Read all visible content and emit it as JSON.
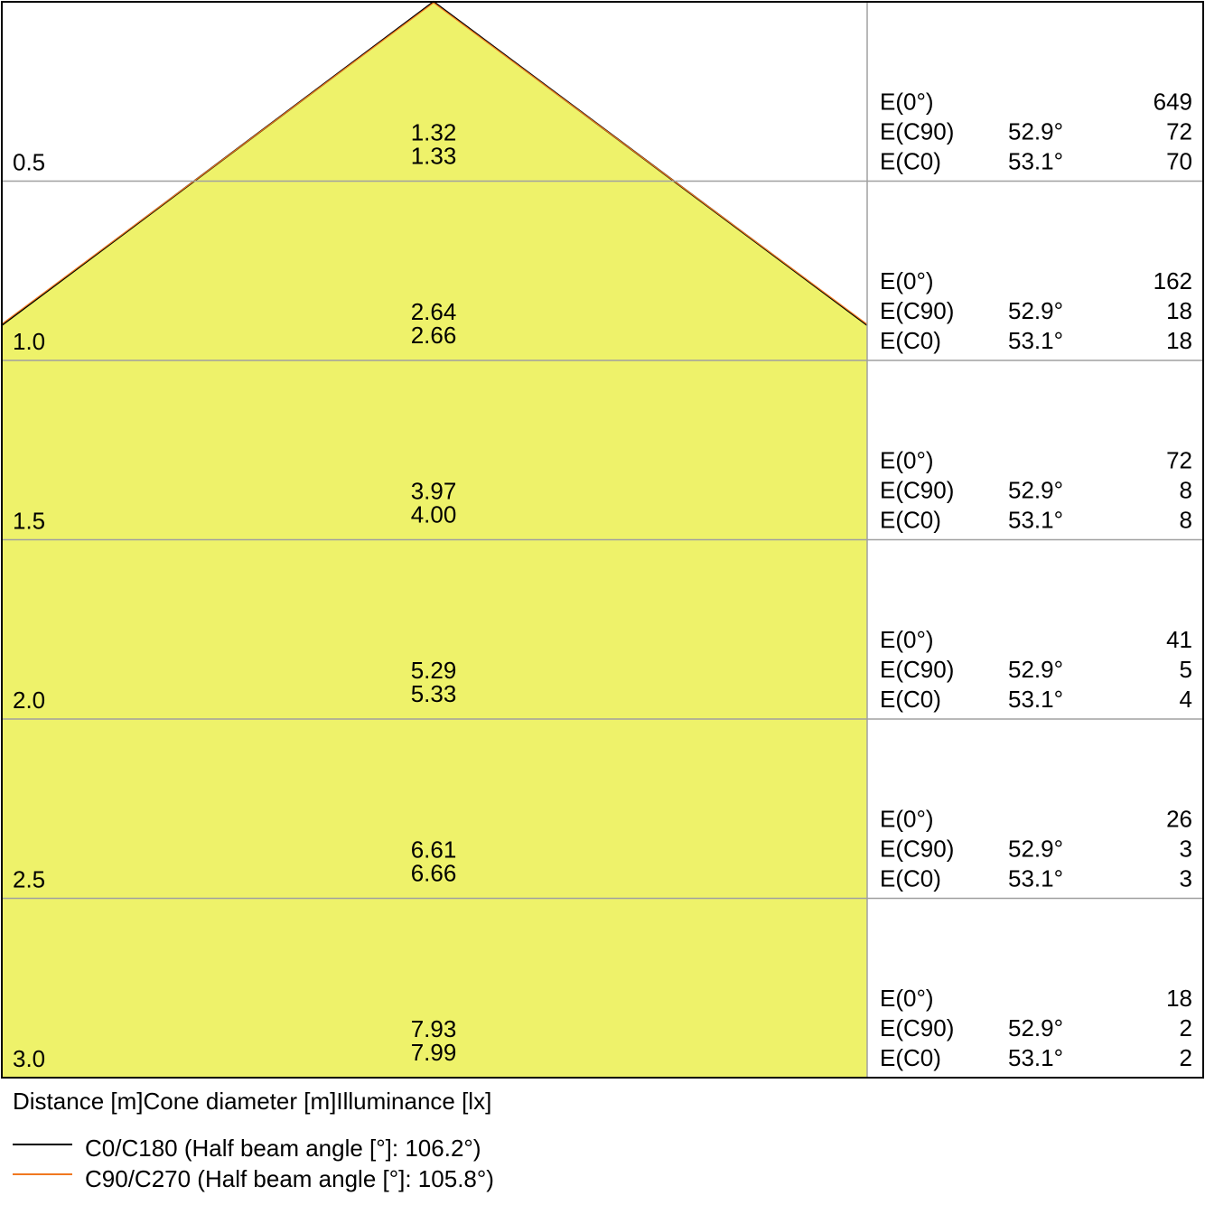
{
  "chart_data": {
    "type": "cone-diagram",
    "colors": {
      "fill": "#eef26a",
      "c0_line": "#000000",
      "c90_line": "#f07820",
      "grid": "#a0a0a0",
      "border": "#000000"
    },
    "rows": [
      {
        "distance": "0.5",
        "diameters": [
          "1.32",
          "1.33"
        ],
        "e0": "649",
        "ec90_angle": "52.9°",
        "ec90": "72",
        "ec0_angle": "53.1°",
        "ec0": "70"
      },
      {
        "distance": "1.0",
        "diameters": [
          "2.64",
          "2.66"
        ],
        "e0": "162",
        "ec90_angle": "52.9°",
        "ec90": "18",
        "ec0_angle": "53.1°",
        "ec0": "18"
      },
      {
        "distance": "1.5",
        "diameters": [
          "3.97",
          "4.00"
        ],
        "e0": "72",
        "ec90_angle": "52.9°",
        "ec90": "8",
        "ec0_angle": "53.1°",
        "ec0": "8"
      },
      {
        "distance": "2.0",
        "diameters": [
          "5.29",
          "5.33"
        ],
        "e0": "41",
        "ec90_angle": "52.9°",
        "ec90": "5",
        "ec0_angle": "53.1°",
        "ec0": "4"
      },
      {
        "distance": "2.5",
        "diameters": [
          "6.61",
          "6.66"
        ],
        "e0": "26",
        "ec90_angle": "52.9°",
        "ec90": "3",
        "ec0_angle": "53.1°",
        "ec0": "3"
      },
      {
        "distance": "3.0",
        "diameters": [
          "7.93",
          "7.99"
        ],
        "e0": "18",
        "ec90_angle": "52.9°",
        "ec90": "2",
        "ec0_angle": "53.1°",
        "ec0": "2"
      }
    ],
    "row_labels": {
      "e0": "E(0°)",
      "ec90": "E(C90)",
      "ec0": "E(C0)"
    },
    "caption": "Distance [m]Cone diameter [m]Illuminance [lx]",
    "legend": [
      {
        "name": "C0/C180 (Half beam angle [°]: 106.2°)",
        "color": "#000000",
        "half_beam_angle": 106.2
      },
      {
        "name": "C90/C270 (Half beam angle [°]: 105.8°)",
        "color": "#f07820",
        "half_beam_angle": 105.8
      }
    ]
  }
}
